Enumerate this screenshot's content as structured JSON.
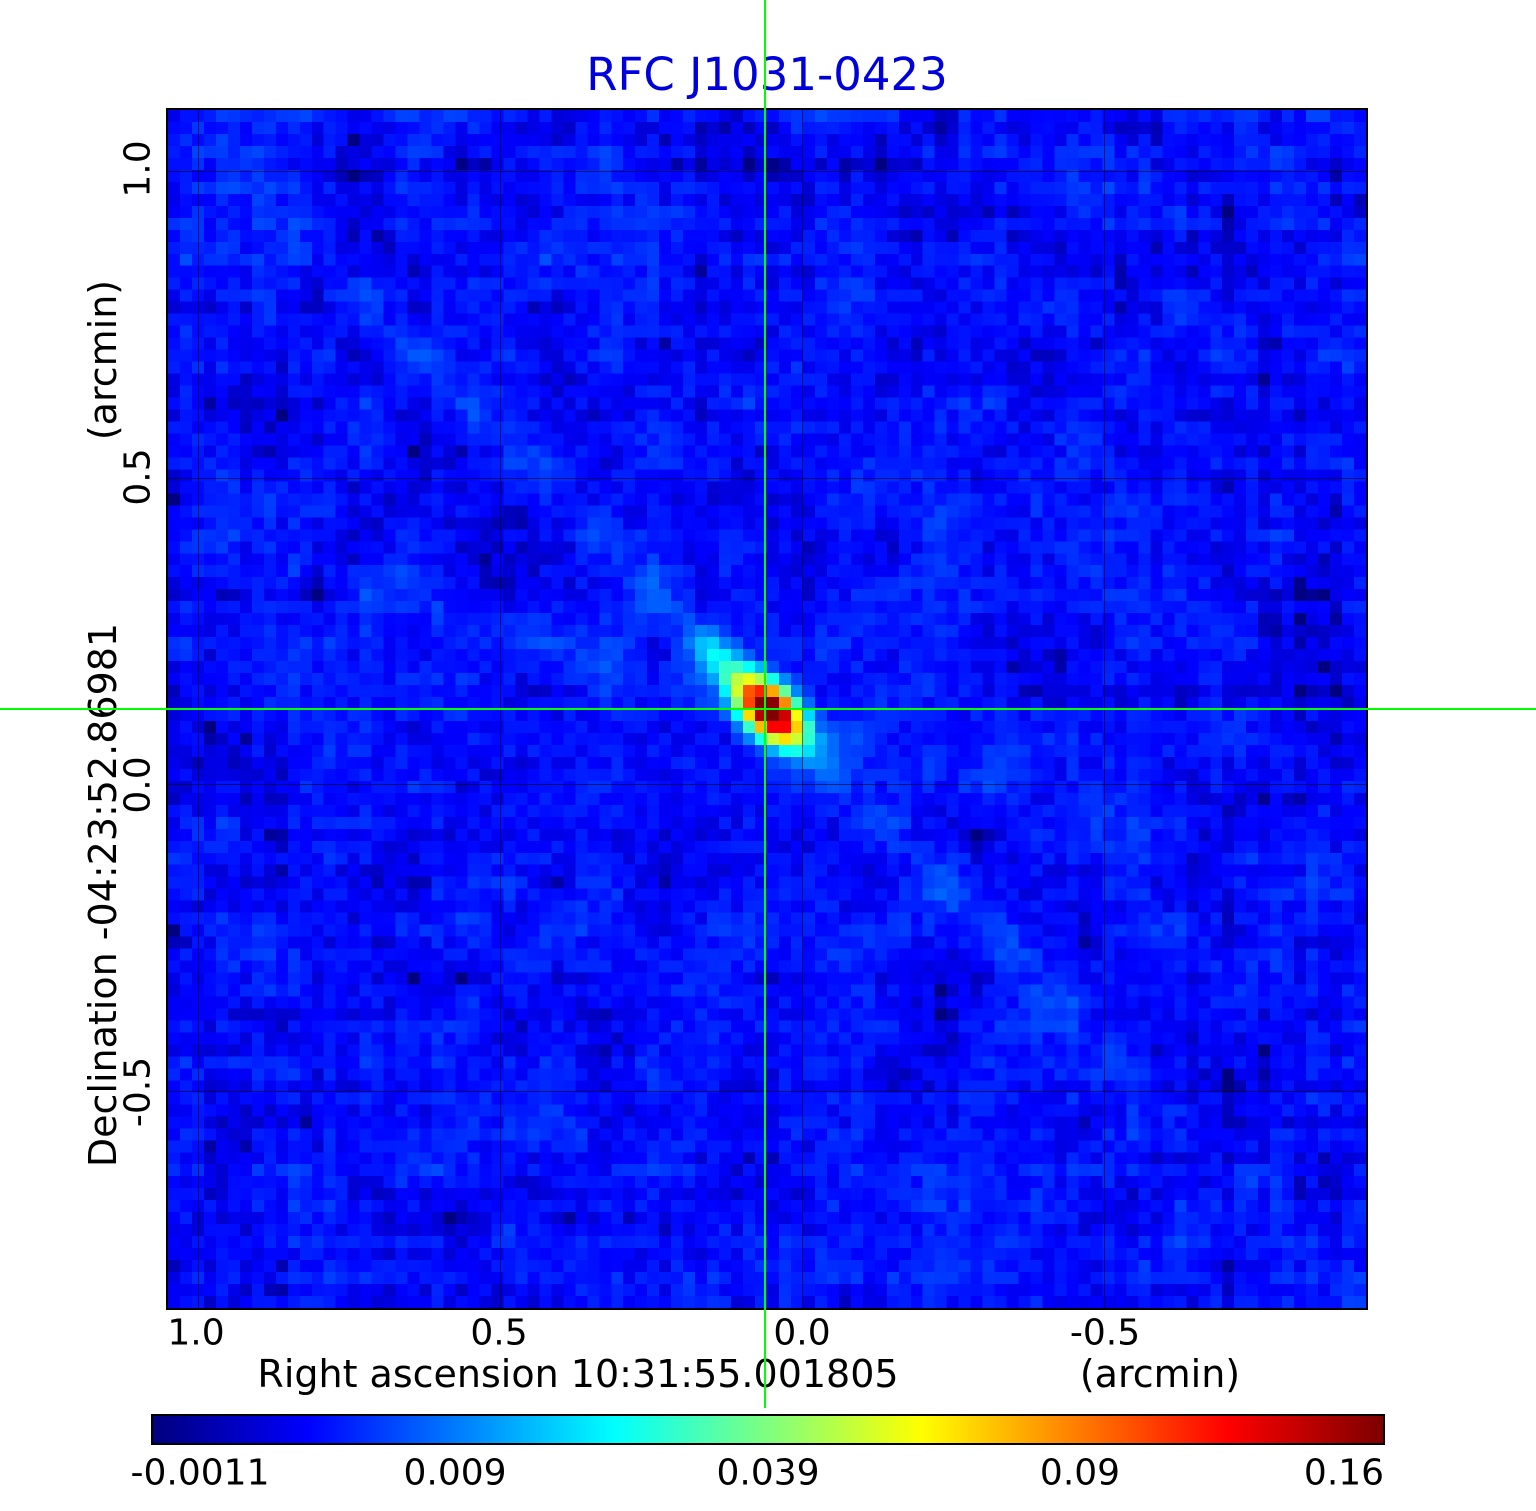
{
  "figure": {
    "title": "RFC J1031-0423",
    "title_color": "#0000dd",
    "background_color": "#ffffff",
    "crosshair_color": "#00ff00"
  },
  "chart_data": {
    "type": "heatmap",
    "title": "RFC J1031-0423",
    "colormap": "jet",
    "grid": true,
    "x_axis": {
      "label_full": "Right ascension  10:31:55.001805",
      "label": "Right ascension",
      "reference_value": "10:31:55.001805",
      "unit": "(arcmin)",
      "ticks": [
        "1.0",
        "0.5",
        "0.0",
        "-0.5"
      ],
      "tick_values": [
        1.0,
        0.5,
        0.0,
        -0.5
      ],
      "range_arcmin": [
        1.05,
        -0.93
      ]
    },
    "y_axis": {
      "label_full": "Declination  -04:23:52.86981",
      "label": "Declination",
      "reference_value": "-04:23:52.86981",
      "unit": "(arcmin)",
      "ticks": [
        "1.0",
        "0.5",
        "0.0",
        "-0.5"
      ],
      "tick_values": [
        1.0,
        0.5,
        0.0,
        -0.5
      ],
      "range_arcmin": [
        1.1,
        -0.86
      ]
    },
    "colorbar": {
      "orientation": "horizontal",
      "tick_labels": [
        "-0.0011",
        "0.009",
        "0.039",
        "0.09",
        "0.16"
      ],
      "tick_values": [
        -0.0011,
        0.009,
        0.039,
        0.09,
        0.16
      ],
      "vmin": -0.0011,
      "vmax": 0.16,
      "scale": "sqrt"
    },
    "source": {
      "name": "RFC J1031-0423",
      "peak_value": 0.16,
      "peak_frac_x": 0.498,
      "peak_frac_y": 0.497,
      "peak_offset_arcmin": [
        0.06,
        0.12
      ],
      "elongation_pa": "northwest-southeast"
    }
  }
}
